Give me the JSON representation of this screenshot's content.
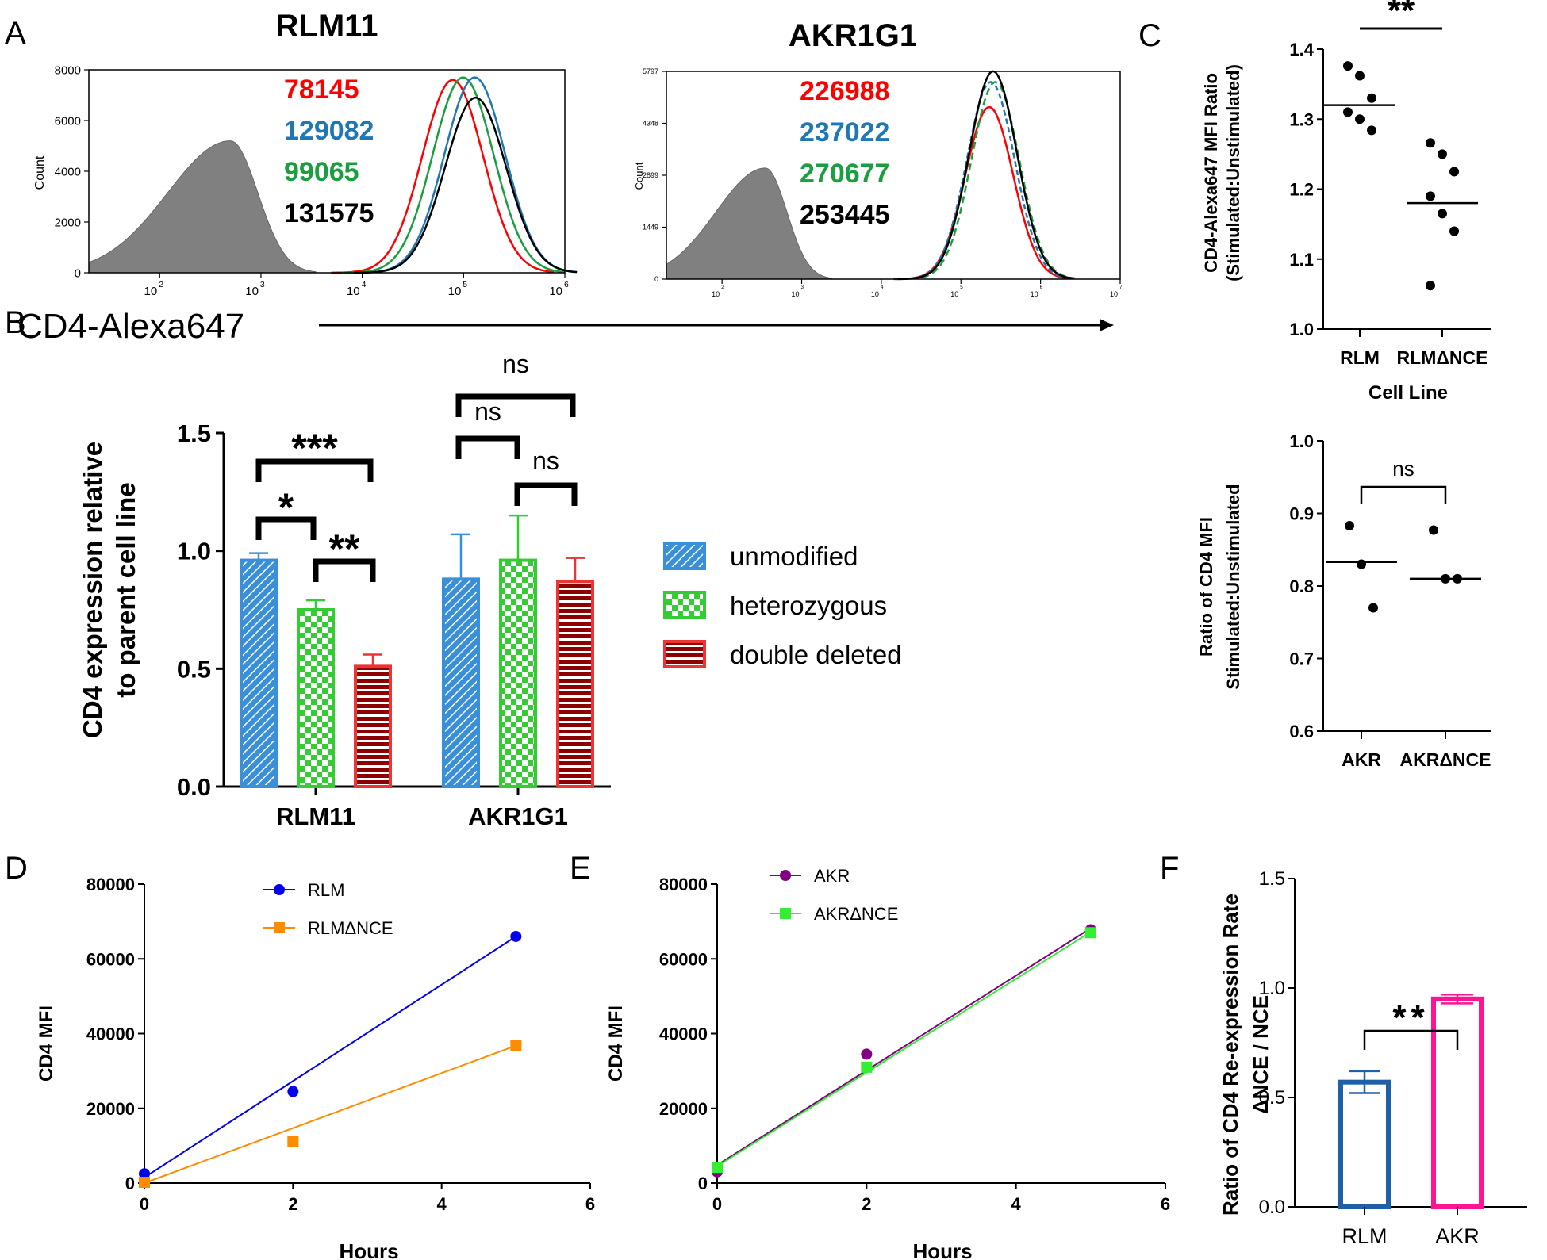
{
  "colors": {
    "red": "#ff0000",
    "blue": "#1f77b4",
    "green": "#1a9e3f",
    "black": "#000000",
    "gray": "#808080",
    "bar_blue": "#3a8fd9",
    "bar_green": "#33cc33",
    "bar_red": "#ee3333",
    "dark_red": "#8b0000",
    "line_blue": "#0000ee",
    "line_orange": "#ff8c00",
    "line_purple": "#800080",
    "line_lime": "#33ee33",
    "f_blue": "#1f5fa8",
    "f_pink": "#ff1493"
  },
  "panel_labels": {
    "a": "A",
    "b": "B",
    "c": "C",
    "d": "D",
    "e": "E",
    "f": "F"
  },
  "chart_data": [
    {
      "id": "A1",
      "type": "area",
      "title": "RLM11",
      "ylabel": "Count",
      "xlabel": "CD4-Alexa647",
      "x_scale": "log",
      "xlim": [
        20,
        1000000
      ],
      "ylim": [
        0,
        8000
      ],
      "yticks": [
        "0",
        "2000",
        "4000",
        "6000",
        "8000"
      ],
      "xtick_bases": [
        "10",
        "10",
        "10",
        "10",
        "10"
      ],
      "xtick_exps": [
        "2",
        "3",
        "4",
        "5",
        "6"
      ],
      "mfi": [
        {
          "value": "78145",
          "color": "red"
        },
        {
          "value": "129082",
          "color": "blue"
        },
        {
          "value": "99065",
          "color": "green"
        },
        {
          "value": "131575",
          "color": "black"
        }
      ],
      "gray_peak": {
        "center": 500,
        "height": 5200
      },
      "curves": [
        {
          "color": "red",
          "center": 78145,
          "height": 7600
        },
        {
          "color": "green",
          "center": 99065,
          "height": 7700
        },
        {
          "color": "blue",
          "center": 129082,
          "height": 7700
        },
        {
          "color": "black",
          "center": 131575,
          "height": 6900
        }
      ]
    },
    {
      "id": "A2",
      "type": "area",
      "title": "AKR1G1",
      "ylabel": "Count",
      "x_scale": "log",
      "xlim": [
        20,
        10000000
      ],
      "ylim": [
        0,
        5797
      ],
      "yticks": [
        "0",
        "1449",
        "2899",
        "4348",
        "5797"
      ],
      "xtick_bases": [
        "10",
        "10",
        "10",
        "10",
        "10",
        "10"
      ],
      "xtick_exps": [
        "2",
        "3",
        "4",
        "5",
        "6",
        "7"
      ],
      "mfi": [
        {
          "value": "226988",
          "color": "red"
        },
        {
          "value": "237022",
          "color": "blue"
        },
        {
          "value": "270677",
          "color": "green"
        },
        {
          "value": "253445",
          "color": "black"
        }
      ],
      "gray_peak": {
        "center": 350,
        "height": 3100
      },
      "curves": [
        {
          "color": "red",
          "center": 226988,
          "height": 4800
        },
        {
          "color": "blue",
          "center": 237022,
          "height": 5500
        },
        {
          "color": "green",
          "center": 270677,
          "height": 5500
        },
        {
          "color": "black",
          "center": 253445,
          "height": 5800
        }
      ]
    },
    {
      "id": "B",
      "type": "bar",
      "ylabel_lines": [
        "CD4 expression relative",
        "to parent cell line"
      ],
      "ylim": [
        0,
        1.5
      ],
      "yticks": [
        "0.0",
        "0.5",
        "1.0",
        "1.5"
      ],
      "categories": [
        "RLM11",
        "AKR1G1"
      ],
      "series": [
        {
          "name": "unmodified",
          "values": [
            0.96,
            0.88
          ],
          "errors": [
            0.03,
            0.19
          ]
        },
        {
          "name": "heterozygous",
          "values": [
            0.75,
            0.96
          ],
          "errors": [
            0.04,
            0.19
          ]
        },
        {
          "name": "double deleted",
          "values": [
            0.51,
            0.87
          ],
          "errors": [
            0.05,
            0.1
          ]
        }
      ],
      "significance": [
        "***",
        "*",
        "**",
        "ns",
        "ns",
        "ns"
      ]
    },
    {
      "id": "C1",
      "type": "scatter",
      "ylabel_lines": [
        "CD4-Alexa647 MFI Ratio",
        "(Stimulated:Unstimulated)"
      ],
      "xlabel": "Cell  Line",
      "ylim": [
        1.0,
        1.4
      ],
      "yticks": [
        "1.0",
        "1.1",
        "1.2",
        "1.3",
        "1.4"
      ],
      "categories": [
        "RLM",
        "RLMΔNCE"
      ],
      "points": [
        [
          1.376,
          1.362,
          1.33,
          1.31,
          1.3,
          1.284
        ],
        [
          1.266,
          1.25,
          1.225,
          1.19,
          1.165,
          1.14,
          1.062
        ]
      ],
      "means": [
        1.32,
        1.18
      ],
      "significance": "**"
    },
    {
      "id": "C2",
      "type": "scatter",
      "ylabel_lines": [
        "Ratio of CD4 MFI",
        "Stimulated:Unstimulated"
      ],
      "ylim": [
        0.6,
        1.0
      ],
      "yticks": [
        "0.6",
        "0.7",
        "0.8",
        "0.9",
        "1.0"
      ],
      "categories": [
        "AKR",
        "AKRΔNCE"
      ],
      "points": [
        [
          0.883,
          0.83,
          0.77
        ],
        [
          0.877,
          0.81,
          0.81
        ]
      ],
      "means": [
        0.833,
        0.81
      ],
      "significance": "ns"
    },
    {
      "id": "D",
      "type": "line",
      "xlabel": "Hours",
      "ylabel": "CD4 MFI",
      "xlim": [
        0,
        6
      ],
      "ylim": [
        0,
        80000
      ],
      "xticks": [
        "0",
        "2",
        "4",
        "6"
      ],
      "yticks": [
        "0",
        "20000",
        "40000",
        "60000",
        "80000"
      ],
      "series": [
        {
          "name": "RLM",
          "x": [
            0,
            2,
            5
          ],
          "y": [
            2500,
            24500,
            66000
          ],
          "fit": [
            [
              0,
              1500
            ],
            [
              5,
              66000
            ]
          ],
          "marker": "circle",
          "color": "line_blue"
        },
        {
          "name": "RLMΔNCE",
          "x": [
            0,
            2,
            5
          ],
          "y": [
            200,
            11200,
            36800
          ],
          "fit": [
            [
              0,
              0
            ],
            [
              5,
              36800
            ]
          ],
          "marker": "square",
          "color": "line_orange"
        }
      ]
    },
    {
      "id": "E",
      "type": "line",
      "xlabel": "Hours",
      "ylabel": "CD4 MFI",
      "xlim": [
        0,
        6
      ],
      "ylim": [
        0,
        80000
      ],
      "xticks": [
        "0",
        "2",
        "4",
        "6"
      ],
      "yticks": [
        "0",
        "20000",
        "40000",
        "60000",
        "80000"
      ],
      "series": [
        {
          "name": "AKR",
          "x": [
            0,
            2,
            5
          ],
          "y": [
            3000,
            34500,
            67800
          ],
          "fit": [
            [
              0,
              4800
            ],
            [
              5,
              68200
            ]
          ],
          "marker": "circle",
          "color": "line_purple"
        },
        {
          "name": "AKRΔNCE",
          "x": [
            0,
            2,
            5
          ],
          "y": [
            4200,
            31000,
            67000
          ],
          "fit": [
            [
              0,
              4500
            ],
            [
              5,
              67200
            ]
          ],
          "marker": "square",
          "color": "line_lime"
        }
      ]
    },
    {
      "id": "F",
      "type": "bar",
      "ylabel_lines": [
        "Ratio of CD4 Re-expression Rate",
        "ΔNCE / NCE"
      ],
      "ylim": [
        0,
        1.5
      ],
      "yticks": [
        "0.0",
        "0.5",
        "1.0",
        "1.5"
      ],
      "categories": [
        "RLM",
        "AKR"
      ],
      "values": [
        0.57,
        0.95
      ],
      "errors": [
        0.05,
        0.02
      ],
      "significance": "**"
    }
  ]
}
